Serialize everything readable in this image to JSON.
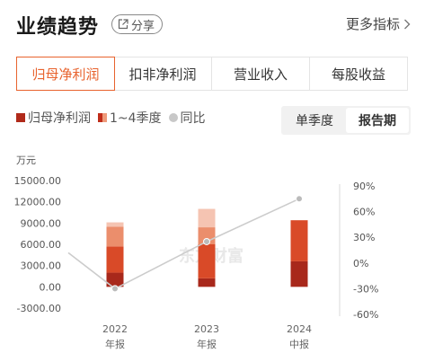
{
  "header": {
    "title": "业绩趋势",
    "share_label": "分享",
    "more_label": "更多指标"
  },
  "tabs": [
    {
      "label": "归母净利润",
      "active": true
    },
    {
      "label": "扣非净利润",
      "active": false
    },
    {
      "label": "营业收入",
      "active": false
    },
    {
      "label": "每股收益",
      "active": false
    }
  ],
  "legend": {
    "net_profit": "归母净利润",
    "quarters": "1~4季度",
    "yoy": "同比"
  },
  "toggle": {
    "single_quarter": "单季度",
    "report_period": "报告期",
    "selected": "报告期"
  },
  "watermark": "东方财富",
  "colors": {
    "accent": "#e8632e",
    "q1": "#a8281b",
    "q2": "#d94a28",
    "q3": "#eb8e6c",
    "q4": "#f5c4b2",
    "yoy_line": "#cccccc"
  },
  "chart_data": {
    "type": "bar",
    "unit_label": "万元",
    "categories": [
      {
        "year": "2022",
        "period": "年报"
      },
      {
        "year": "2023",
        "period": "年报"
      },
      {
        "year": "2024",
        "period": "中报"
      }
    ],
    "series": [
      {
        "name": "Q1",
        "values": [
          2000,
          1200,
          3600
        ]
      },
      {
        "name": "Q2",
        "values": [
          3700,
          4800,
          5800
        ]
      },
      {
        "name": "Q3",
        "values": [
          2800,
          2400,
          0
        ]
      },
      {
        "name": "Q4",
        "values": [
          600,
          2600,
          0
        ]
      }
    ],
    "yoy_values": [
      -30,
      25,
      75
    ],
    "left_axis": {
      "ticks": [
        "15000.00",
        "12000.00",
        "9000.00",
        "6000.00",
        "3000.00",
        "0.00",
        "-3000.00"
      ],
      "min": -3000,
      "max": 15000
    },
    "right_axis": {
      "ticks": [
        "90%",
        "60%",
        "30%",
        "0%",
        "-30%",
        "-60%"
      ],
      "min": -60,
      "max": 90
    },
    "grid": false
  }
}
